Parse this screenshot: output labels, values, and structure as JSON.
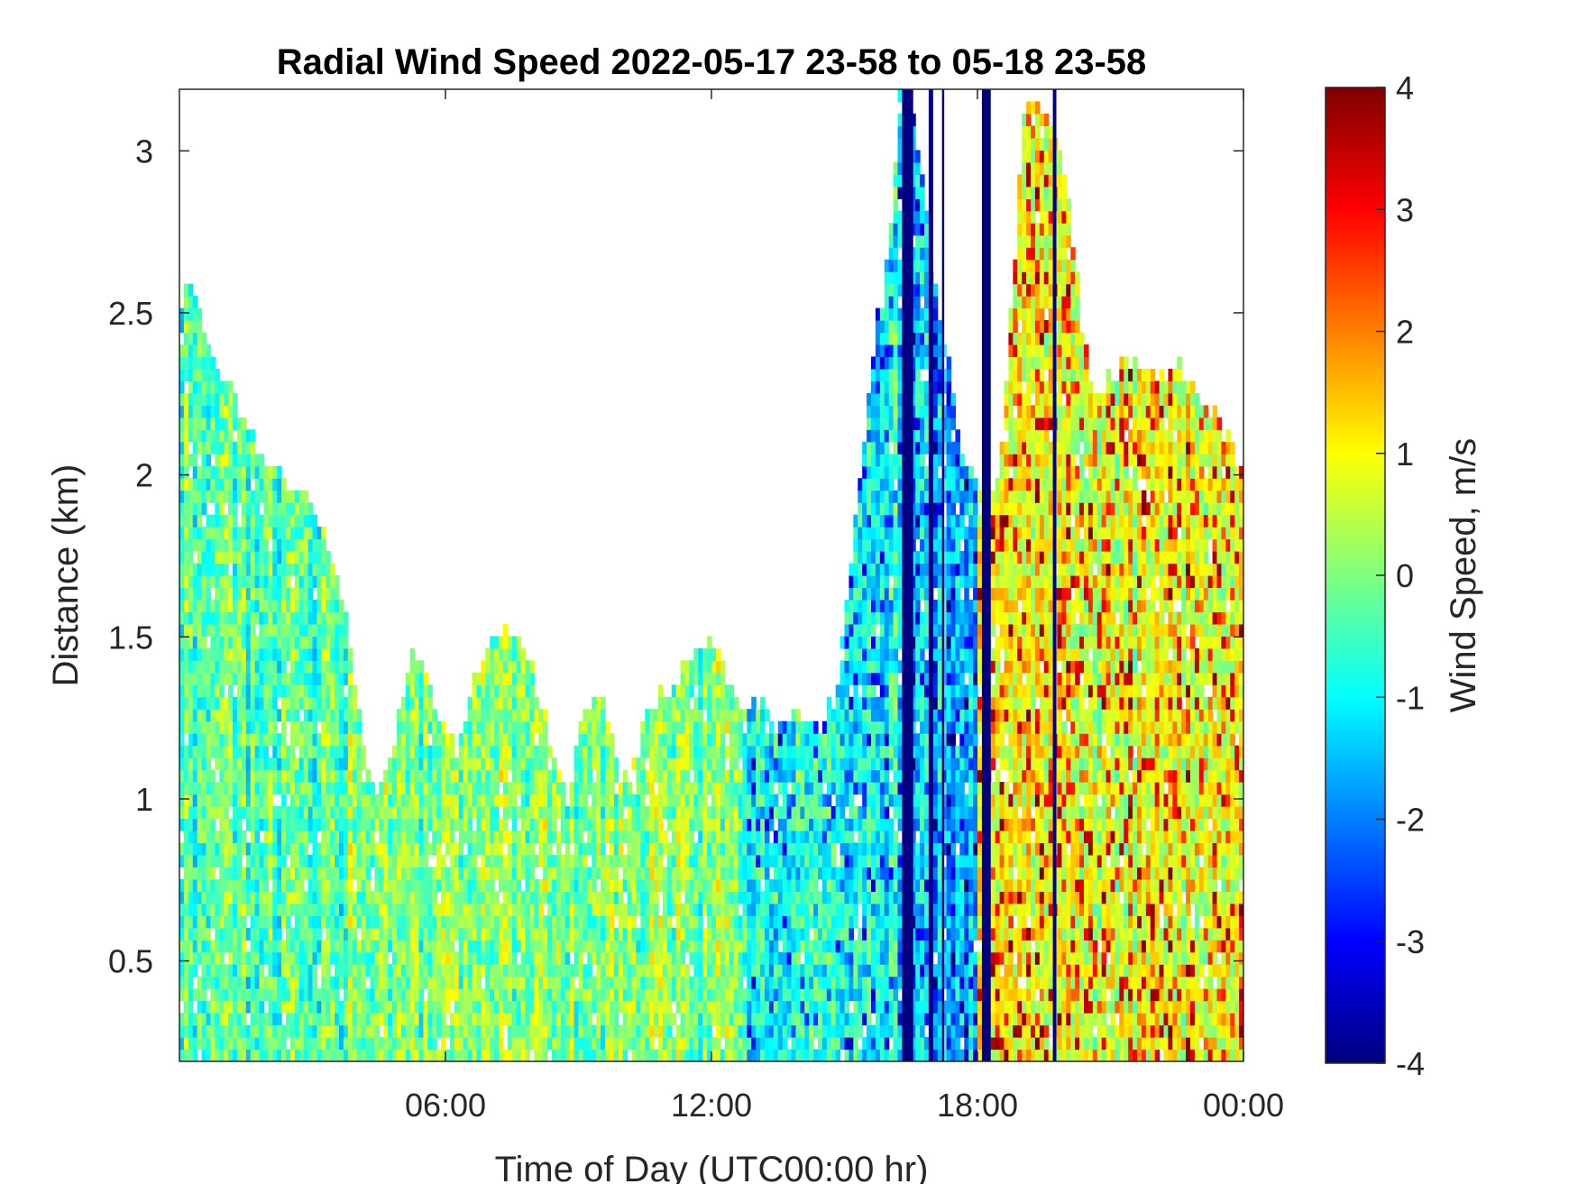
{
  "chart_data": {
    "type": "heatmap",
    "title": "Radial Wind Speed 2022-05-17 23-58 to 05-18 23-58",
    "xlabel": "Time of Day (UTC00:00 hr)",
    "ylabel": "Distance (km)",
    "colorbar_label": "Wind Speed, m/s",
    "x_unit": "hours since 2022-05-17 23:58 UTC",
    "xlim": [
      0,
      24
    ],
    "x_ticks": [
      {
        "value": 6,
        "label": "06:00"
      },
      {
        "value": 12,
        "label": "12:00"
      },
      {
        "value": 18,
        "label": "18:00"
      },
      {
        "value": 24,
        "label": "00:00"
      }
    ],
    "ylim": [
      0.19,
      3.19
    ],
    "y_ticks": [
      {
        "value": 0.5,
        "label": "0.5"
      },
      {
        "value": 1,
        "label": "1"
      },
      {
        "value": 1.5,
        "label": "1.5"
      },
      {
        "value": 2,
        "label": "2"
      },
      {
        "value": 2.5,
        "label": "2.5"
      },
      {
        "value": 3,
        "label": "3"
      }
    ],
    "clim": [
      -4,
      4
    ],
    "colorbar_ticks": [
      {
        "value": 4,
        "label": "4"
      },
      {
        "value": 3,
        "label": "3"
      },
      {
        "value": 2,
        "label": "2"
      },
      {
        "value": 1,
        "label": "1"
      },
      {
        "value": 0,
        "label": "0"
      },
      {
        "value": -1,
        "label": "-1"
      },
      {
        "value": -2,
        "label": "-2"
      },
      {
        "value": -3,
        "label": "-3"
      },
      {
        "value": -4,
        "label": "-4"
      }
    ],
    "colormap": "jet",
    "colormap_stops": [
      "#00007f",
      "#0000ff",
      "#007fff",
      "#00ffff",
      "#7fff7f",
      "#ffff00",
      "#ff7f00",
      "#ff0000",
      "#7f0000"
    ],
    "grid": false,
    "data_extent": [
      {
        "x": 0.0,
        "top_km": 2.55
      },
      {
        "x": 0.25,
        "top_km": 2.6
      },
      {
        "x": 0.5,
        "top_km": 2.45
      },
      {
        "x": 0.75,
        "top_km": 2.38
      },
      {
        "x": 1.0,
        "top_km": 2.3
      },
      {
        "x": 1.25,
        "top_km": 2.22
      },
      {
        "x": 1.5,
        "top_km": 2.15
      },
      {
        "x": 1.75,
        "top_km": 2.08
      },
      {
        "x": 2.0,
        "top_km": 2.05
      },
      {
        "x": 2.25,
        "top_km": 2.0
      },
      {
        "x": 2.5,
        "top_km": 1.98
      },
      {
        "x": 2.75,
        "top_km": 1.95
      },
      {
        "x": 3.0,
        "top_km": 1.9
      },
      {
        "x": 3.25,
        "top_km": 1.82
      },
      {
        "x": 3.5,
        "top_km": 1.7
      },
      {
        "x": 3.75,
        "top_km": 1.55
      },
      {
        "x": 4.0,
        "top_km": 1.3
      },
      {
        "x": 4.25,
        "top_km": 1.05
      },
      {
        "x": 4.5,
        "top_km": 1.0
      },
      {
        "x": 4.75,
        "top_km": 1.15
      },
      {
        "x": 5.0,
        "top_km": 1.3
      },
      {
        "x": 5.25,
        "top_km": 1.45
      },
      {
        "x": 5.5,
        "top_km": 1.4
      },
      {
        "x": 5.75,
        "top_km": 1.3
      },
      {
        "x": 6.0,
        "top_km": 1.25
      },
      {
        "x": 6.25,
        "top_km": 1.15
      },
      {
        "x": 6.5,
        "top_km": 1.3
      },
      {
        "x": 6.75,
        "top_km": 1.4
      },
      {
        "x": 7.0,
        "top_km": 1.48
      },
      {
        "x": 7.25,
        "top_km": 1.52
      },
      {
        "x": 7.5,
        "top_km": 1.52
      },
      {
        "x": 7.75,
        "top_km": 1.48
      },
      {
        "x": 8.0,
        "top_km": 1.4
      },
      {
        "x": 8.25,
        "top_km": 1.25
      },
      {
        "x": 8.5,
        "top_km": 1.1
      },
      {
        "x": 8.75,
        "top_km": 1.0
      },
      {
        "x": 9.0,
        "top_km": 1.2
      },
      {
        "x": 9.25,
        "top_km": 1.3
      },
      {
        "x": 9.5,
        "top_km": 1.3
      },
      {
        "x": 9.75,
        "top_km": 1.2
      },
      {
        "x": 10.0,
        "top_km": 1.05
      },
      {
        "x": 10.25,
        "top_km": 1.1
      },
      {
        "x": 10.5,
        "top_km": 1.25
      },
      {
        "x": 10.75,
        "top_km": 1.3
      },
      {
        "x": 11.0,
        "top_km": 1.35
      },
      {
        "x": 11.25,
        "top_km": 1.38
      },
      {
        "x": 11.5,
        "top_km": 1.42
      },
      {
        "x": 11.75,
        "top_km": 1.45
      },
      {
        "x": 12.0,
        "top_km": 1.5
      },
      {
        "x": 12.25,
        "top_km": 1.42
      },
      {
        "x": 12.5,
        "top_km": 1.35
      },
      {
        "x": 12.75,
        "top_km": 1.3
      },
      {
        "x": 13.0,
        "top_km": 1.28
      },
      {
        "x": 13.25,
        "top_km": 1.28
      },
      {
        "x": 13.5,
        "top_km": 1.26
      },
      {
        "x": 13.75,
        "top_km": 1.25
      },
      {
        "x": 14.0,
        "top_km": 1.26
      },
      {
        "x": 14.25,
        "top_km": 1.25
      },
      {
        "x": 14.5,
        "top_km": 1.27
      },
      {
        "x": 14.75,
        "top_km": 1.28
      },
      {
        "x": 15.0,
        "top_km": 1.55
      },
      {
        "x": 15.25,
        "top_km": 1.85
      },
      {
        "x": 15.5,
        "top_km": 2.2
      },
      {
        "x": 15.75,
        "top_km": 2.5
      },
      {
        "x": 16.0,
        "top_km": 2.7
      },
      {
        "x": 16.25,
        "top_km": 3.19
      },
      {
        "x": 16.5,
        "top_km": 3.19
      },
      {
        "x": 16.75,
        "top_km": 2.9
      },
      {
        "x": 17.0,
        "top_km": 2.6
      },
      {
        "x": 17.25,
        "top_km": 2.4
      },
      {
        "x": 17.5,
        "top_km": 2.2
      },
      {
        "x": 17.75,
        "top_km": 2.0
      },
      {
        "x": 18.0,
        "top_km": 2.0
      },
      {
        "x": 18.25,
        "top_km": 1.95
      },
      {
        "x": 18.5,
        "top_km": 2.0
      },
      {
        "x": 18.75,
        "top_km": 2.5
      },
      {
        "x": 19.0,
        "top_km": 3.1
      },
      {
        "x": 19.25,
        "top_km": 3.15
      },
      {
        "x": 19.5,
        "top_km": 3.1
      },
      {
        "x": 19.75,
        "top_km": 3.05
      },
      {
        "x": 20.0,
        "top_km": 2.9
      },
      {
        "x": 20.25,
        "top_km": 2.6
      },
      {
        "x": 20.5,
        "top_km": 2.3
      },
      {
        "x": 20.75,
        "top_km": 2.25
      },
      {
        "x": 21.0,
        "top_km": 2.3
      },
      {
        "x": 21.25,
        "top_km": 2.33
      },
      {
        "x": 21.5,
        "top_km": 2.35
      },
      {
        "x": 21.75,
        "top_km": 2.3
      },
      {
        "x": 22.0,
        "top_km": 2.32
      },
      {
        "x": 22.25,
        "top_km": 2.3
      },
      {
        "x": 22.5,
        "top_km": 2.35
      },
      {
        "x": 22.75,
        "top_km": 2.3
      },
      {
        "x": 23.0,
        "top_km": 2.25
      },
      {
        "x": 23.25,
        "top_km": 2.2
      },
      {
        "x": 23.5,
        "top_km": 2.15
      },
      {
        "x": 23.75,
        "top_km": 2.1
      },
      {
        "x": 24.0,
        "top_km": 2.0
      }
    ],
    "regimes": [
      {
        "x_start": 0,
        "x_end": 3.8,
        "typical_speed_ms": -0.3
      },
      {
        "x_start": 3.8,
        "x_end": 12.8,
        "typical_speed_ms": 0.0
      },
      {
        "x_start": 12.8,
        "x_end": 16.2,
        "typical_speed_ms": -0.8
      },
      {
        "x_start": 16.2,
        "x_end": 18.0,
        "typical_speed_ms": -1.5
      },
      {
        "x_start": 18.0,
        "x_end": 24,
        "typical_speed_ms": 0.8
      }
    ],
    "strong_negative_streaks": [
      {
        "x": 16.3,
        "x_end": 16.55,
        "speed_ms": -4,
        "top_km": 3.19
      },
      {
        "x": 16.9,
        "x_end": 17.0,
        "speed_ms": -4,
        "top_km": 3.19
      },
      {
        "x": 17.2,
        "x_end": 17.25,
        "speed_ms": -4,
        "top_km": 3.19
      },
      {
        "x": 18.1,
        "x_end": 18.3,
        "speed_ms": -4,
        "top_km": 3.19
      },
      {
        "x": 19.7,
        "x_end": 19.78,
        "speed_ms": -4,
        "top_km": 3.19
      }
    ]
  }
}
